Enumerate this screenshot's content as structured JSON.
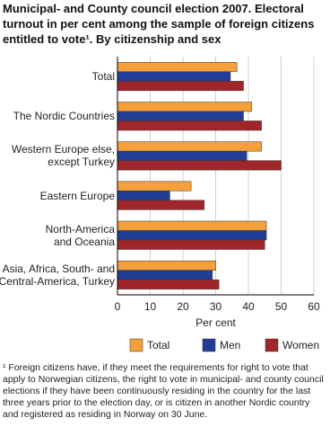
{
  "chart_data": {
    "type": "hbar",
    "title": "Municipal- and County council election 2007. Electoral turnout in per cent among the sample of foreign citizens entitled to vote¹. By citizenship and sex",
    "categories": [
      "Total",
      "The Nordic Countries",
      "Western Europe else,\nexcept Turkey",
      "Eastern Europe",
      "North-America\nand Oceania",
      "Asia, Africa, South- and\nCentral-America, Turkey"
    ],
    "series": [
      {
        "name": "Total",
        "color": "#f5a03a",
        "values": [
          36.5,
          41,
          44,
          22.5,
          45.5,
          30
        ]
      },
      {
        "name": "Men",
        "color": "#213d96",
        "values": [
          34.5,
          38.5,
          39.5,
          16,
          45.5,
          29
        ]
      },
      {
        "name": "Women",
        "color": "#a0262b",
        "values": [
          38.5,
          44,
          50,
          26.5,
          45,
          31
        ]
      }
    ],
    "xlim": [
      0,
      60
    ],
    "xticks": [
      0,
      10,
      20,
      30,
      40,
      50,
      60
    ],
    "xlabel": "Per cent",
    "grid": true,
    "footnote": "¹ Foreign citizens have, if they meet the requirements for right to vote that apply to Norwegian citizens, the right to vote in municipal- and county council elections if they have been continuously residing in the country for the last three years prior to the election day, or is citizen in another Nordic country and registered as residing in Norway on 30 June."
  }
}
